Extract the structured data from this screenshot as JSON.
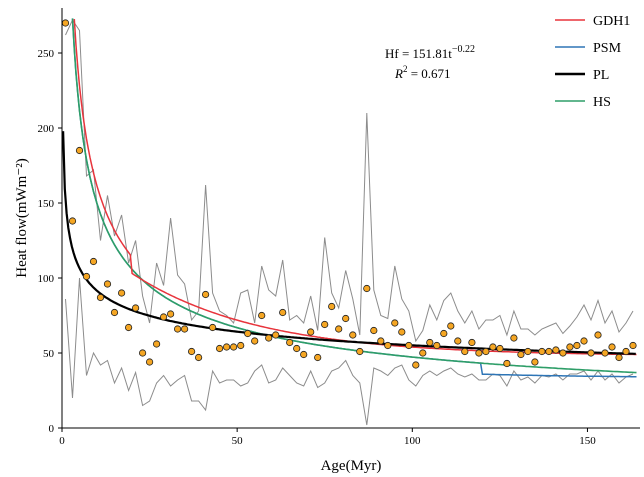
{
  "chart_data": {
    "type": "scatter",
    "xlabel": "Age(Myr)",
    "ylabel": "Heat flow(mWm⁻²)",
    "xlim": [
      0,
      165
    ],
    "ylim": [
      0,
      280
    ],
    "xticks": [
      "0",
      "50",
      "100",
      "150"
    ],
    "yticks": [
      "0",
      "50",
      "100",
      "150",
      "200",
      "250"
    ],
    "grid": false,
    "legend_position": "top-right",
    "annotation": {
      "equation_prefix": "Hf = 151.81t",
      "equation_exponent": "−0.22",
      "r2_label": "R",
      "r2_sup": "2",
      "r2_value": " = 0.671"
    },
    "legend": [
      {
        "name": "GDH1",
        "color": "#e8343c"
      },
      {
        "name": "PSM",
        "color": "#2e75b6"
      },
      {
        "name": "PL",
        "color": "#000000"
      },
      {
        "name": "HS",
        "color": "#2e9e68"
      }
    ],
    "marker_color": "#f5a623",
    "points": {
      "x": [
        1,
        3,
        5,
        7,
        9,
        11,
        13,
        15,
        17,
        19,
        21,
        23,
        25,
        27,
        29,
        31,
        33,
        35,
        37,
        39,
        41,
        43,
        45,
        47,
        49,
        51,
        53,
        55,
        57,
        59,
        61,
        63,
        65,
        67,
        69,
        71,
        73,
        75,
        77,
        79,
        81,
        83,
        85,
        87,
        89,
        91,
        93,
        95,
        97,
        99,
        101,
        103,
        105,
        107,
        109,
        111,
        113,
        115,
        117,
        119,
        121,
        123,
        125,
        127,
        129,
        131,
        133,
        135,
        137,
        139,
        141,
        143,
        145,
        147,
        149,
        151,
        153,
        155,
        157,
        159,
        161,
        163
      ],
      "y": [
        270,
        138,
        185,
        101,
        111,
        87,
        96,
        77,
        90,
        67,
        80,
        50,
        44,
        56,
        74,
        76,
        66,
        66,
        51,
        47,
        89,
        67,
        53,
        54,
        54,
        55,
        63,
        58,
        75,
        60,
        62,
        77,
        57,
        53,
        49,
        64,
        47,
        69,
        81,
        66,
        73,
        62,
        51,
        93,
        65,
        58,
        55,
        70,
        64,
        55,
        42,
        50,
        57,
        55,
        63,
        68,
        58,
        51,
        57,
        50,
        51,
        54,
        53,
        43,
        60,
        49,
        51,
        44,
        51,
        51,
        52,
        50,
        54,
        55,
        58,
        50,
        62,
        50,
        54,
        47,
        51,
        55
      ]
    },
    "envelope_upper": {
      "x": [
        1,
        3,
        5,
        7,
        9,
        11,
        13,
        15,
        17,
        19,
        21,
        23,
        25,
        27,
        29,
        31,
        33,
        35,
        37,
        39,
        41,
        43,
        45,
        47,
        49,
        51,
        53,
        55,
        57,
        59,
        61,
        63,
        65,
        67,
        69,
        71,
        73,
        75,
        77,
        79,
        81,
        83,
        85,
        87,
        89,
        91,
        93,
        95,
        97,
        99,
        101,
        103,
        105,
        107,
        109,
        111,
        113,
        115,
        117,
        119,
        121,
        123,
        125,
        127,
        129,
        131,
        133,
        135,
        137,
        139,
        141,
        143,
        145,
        147,
        149,
        151,
        153,
        155,
        157,
        159,
        161,
        163
      ],
      "y": [
        262,
        272,
        265,
        168,
        172,
        125,
        155,
        128,
        142,
        110,
        125,
        88,
        70,
        110,
        95,
        140,
        102,
        96,
        72,
        78,
        162,
        90,
        78,
        75,
        70,
        90,
        92,
        70,
        108,
        92,
        88,
        112,
        72,
        75,
        70,
        88,
        65,
        127,
        90,
        80,
        105,
        86,
        62,
        210,
        92,
        75,
        73,
        108,
        86,
        78,
        58,
        65,
        82,
        72,
        85,
        90,
        78,
        70,
        78,
        66,
        72,
        72,
        75,
        62,
        78,
        66,
        66,
        62,
        66,
        68,
        70,
        63,
        68,
        74,
        82,
        72,
        85,
        70,
        78,
        64,
        70,
        78
      ]
    },
    "envelope_lower": {
      "x": [
        1,
        3,
        5,
        7,
        9,
        11,
        13,
        15,
        17,
        19,
        21,
        23,
        25,
        27,
        29,
        31,
        33,
        35,
        37,
        39,
        41,
        43,
        45,
        47,
        49,
        51,
        53,
        55,
        57,
        59,
        61,
        63,
        65,
        67,
        69,
        71,
        73,
        75,
        77,
        79,
        81,
        83,
        85,
        87,
        89,
        91,
        93,
        95,
        97,
        99,
        101,
        103,
        105,
        107,
        109,
        111,
        113,
        115,
        117,
        119,
        121,
        123,
        125,
        127,
        129,
        131,
        133,
        135,
        137,
        139,
        141,
        143,
        145,
        147,
        149,
        151,
        153,
        155,
        157,
        159,
        161,
        163
      ],
      "y": [
        86,
        20,
        100,
        35,
        50,
        42,
        45,
        30,
        40,
        25,
        37,
        15,
        18,
        30,
        35,
        28,
        32,
        35,
        18,
        18,
        12,
        38,
        30,
        32,
        32,
        28,
        30,
        38,
        42,
        30,
        32,
        40,
        35,
        30,
        28,
        38,
        27,
        30,
        38,
        40,
        45,
        35,
        30,
        2,
        40,
        38,
        35,
        40,
        42,
        32,
        28,
        35,
        38,
        35,
        38,
        40,
        36,
        34,
        36,
        32,
        32,
        36,
        35,
        28,
        38,
        32,
        34,
        30,
        35,
        34,
        36,
        32,
        36,
        36,
        38,
        32,
        38,
        32,
        36,
        30,
        34,
        36
      ]
    },
    "models": {
      "GDH1": {
        "type": "gdh1"
      },
      "PSM": {
        "type": "psm"
      },
      "PL": {
        "type": "power",
        "a": 151.81,
        "b": -0.22
      },
      "HS": {
        "type": "hs"
      }
    }
  }
}
